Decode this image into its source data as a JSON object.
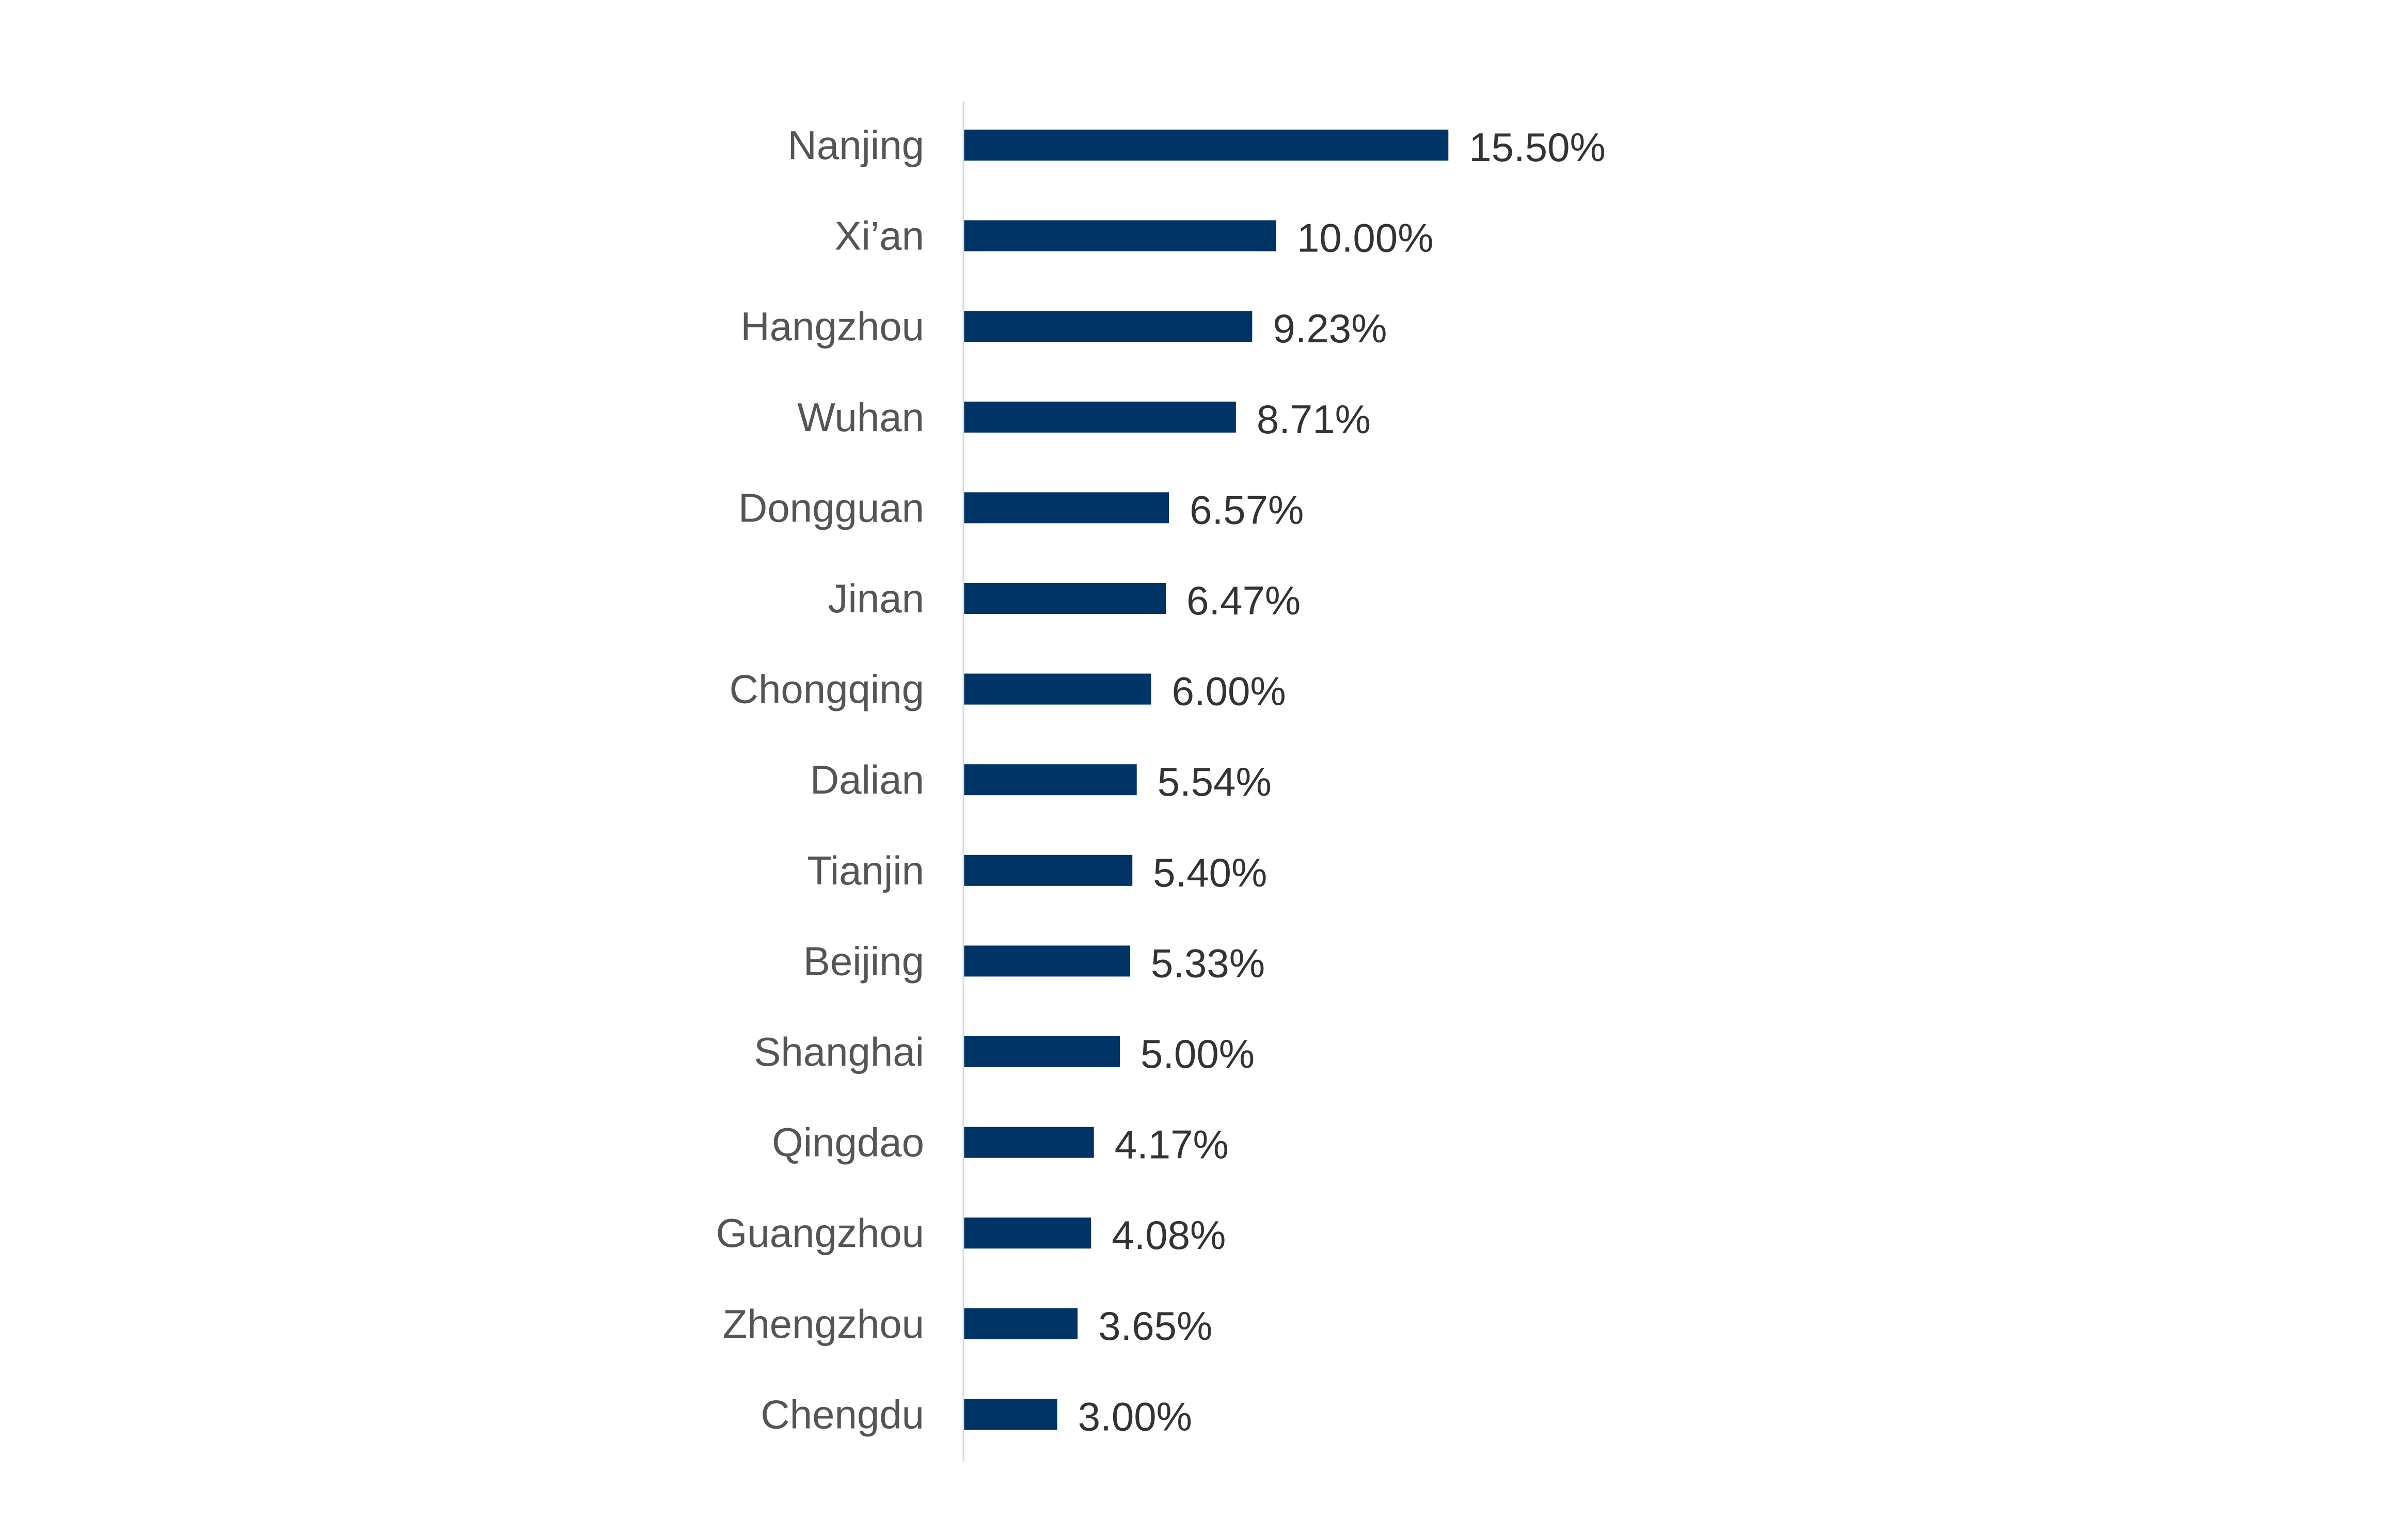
{
  "chart_data": {
    "type": "bar",
    "orientation": "horizontal",
    "categories": [
      "Nanjing",
      "Xi’an",
      "Hangzhou",
      "Wuhan",
      "Dongguan",
      "Jinan",
      "Chongqing",
      "Dalian",
      "Tianjin",
      "Beijing",
      "Shanghai",
      "Qingdao",
      "Guangzhou",
      "Zhengzhou",
      "Chengdu"
    ],
    "values": [
      15.5,
      10.0,
      9.23,
      8.71,
      6.57,
      6.47,
      6.0,
      5.54,
      5.4,
      5.33,
      5.0,
      4.17,
      4.08,
      3.65,
      3.0
    ],
    "value_labels": [
      "15.50%",
      "10.00%",
      "9.23%",
      "8.71%",
      "6.57%",
      "6.47%",
      "6.00%",
      "5.54%",
      "5.40%",
      "5.33%",
      "5.00%",
      "4.17%",
      "4.08%",
      "3.65%",
      "3.00%"
    ],
    "title": "",
    "xlabel": "",
    "ylabel": "",
    "xlim": [
      0,
      16
    ],
    "grid": false,
    "legend": "none",
    "bar_color": "#003366",
    "axis_color": "#d9d9d9"
  }
}
